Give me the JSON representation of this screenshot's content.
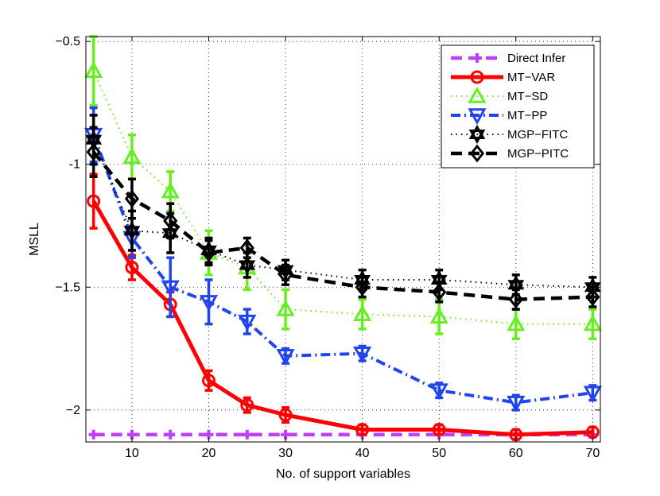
{
  "chart_data": {
    "type": "line",
    "xlabel": "No. of support variables",
    "ylabel": "MSLL",
    "x": [
      5,
      10,
      15,
      20,
      25,
      30,
      40,
      50,
      60,
      70
    ],
    "xlim": [
      4,
      71
    ],
    "ylim": [
      -2.13,
      -0.48
    ],
    "xticks": [
      10,
      20,
      30,
      40,
      50,
      60,
      70
    ],
    "xtick_labels": [
      "10",
      "20",
      "30",
      "40",
      "50",
      "60",
      "70"
    ],
    "yticks": [
      -2,
      -1.5,
      -1,
      -0.5
    ],
    "ytick_labels": [
      "−2",
      "−1.5",
      "-1",
      "−0.5"
    ],
    "grid": true,
    "legend_position": "top-right",
    "series": [
      {
        "name": "Direct Infer",
        "color": "#bf3fff",
        "style": "dashed",
        "marker": "plus",
        "values": [
          -2.1,
          -2.1,
          -2.1,
          -2.1,
          -2.1,
          -2.1,
          -2.1,
          -2.1,
          -2.1,
          -2.1
        ],
        "errors": [
          0,
          0,
          0,
          0,
          0,
          0,
          0,
          0,
          0,
          0
        ]
      },
      {
        "name": "MT−VAR",
        "color": "#ff0000",
        "style": "solid",
        "marker": "circle",
        "values": [
          -1.15,
          -1.42,
          -1.57,
          -1.88,
          -1.98,
          -2.02,
          -2.08,
          -2.08,
          -2.1,
          -2.09
        ],
        "errors": [
          0.11,
          0.05,
          0.05,
          0.04,
          0.03,
          0.03,
          0.02,
          0.02,
          0.02,
          0.02
        ]
      },
      {
        "name": "MT−SD",
        "color": "#66ee22",
        "style": "dotted",
        "marker": "triangle-up",
        "values": [
          -0.62,
          -0.97,
          -1.11,
          -1.36,
          -1.42,
          -1.59,
          -1.61,
          -1.62,
          -1.65,
          -1.65
        ],
        "errors": [
          0.14,
          0.09,
          0.08,
          0.09,
          0.09,
          0.08,
          0.06,
          0.07,
          0.06,
          0.06
        ]
      },
      {
        "name": "MT−PP",
        "color": "#2244ee",
        "style": "dashdot",
        "marker": "triangle-down",
        "values": [
          -0.88,
          -1.3,
          -1.5,
          -1.56,
          -1.64,
          -1.78,
          -1.77,
          -1.92,
          -1.97,
          -1.93
        ],
        "errors": [
          0.11,
          0.08,
          0.12,
          0.09,
          0.05,
          0.03,
          0.03,
          0.03,
          0.03,
          0.03
        ]
      },
      {
        "name": "MGP−FITC",
        "color": "#000000",
        "style": "dotted",
        "marker": "hexagram",
        "values": [
          -0.9,
          -1.27,
          -1.28,
          -1.35,
          -1.41,
          -1.43,
          -1.47,
          -1.47,
          -1.49,
          -1.5
        ],
        "errors": [
          0.1,
          0.08,
          0.08,
          0.05,
          0.05,
          0.04,
          0.04,
          0.04,
          0.04,
          0.04
        ]
      },
      {
        "name": "MGP−PITC",
        "color": "#000000",
        "style": "dashed",
        "marker": "diamond",
        "values": [
          -0.95,
          -1.14,
          -1.23,
          -1.36,
          -1.34,
          -1.45,
          -1.5,
          -1.52,
          -1.55,
          -1.54
        ],
        "errors": [
          0.1,
          0.08,
          0.07,
          0.05,
          0.04,
          0.04,
          0.04,
          0.04,
          0.04,
          0.04
        ]
      }
    ]
  }
}
